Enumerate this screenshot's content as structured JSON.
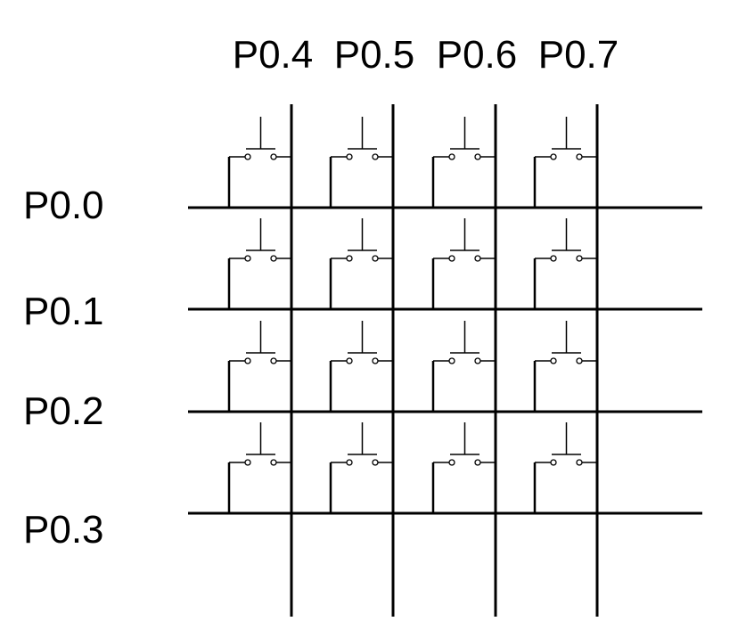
{
  "column_labels": [
    "P0.4",
    "P0.5",
    "P0.6",
    "P0.7"
  ],
  "row_labels": [
    "P0.0",
    "P0.1",
    "P0.2",
    "P0.3"
  ],
  "colors": {
    "line": "#000000",
    "background": "#ffffff"
  }
}
